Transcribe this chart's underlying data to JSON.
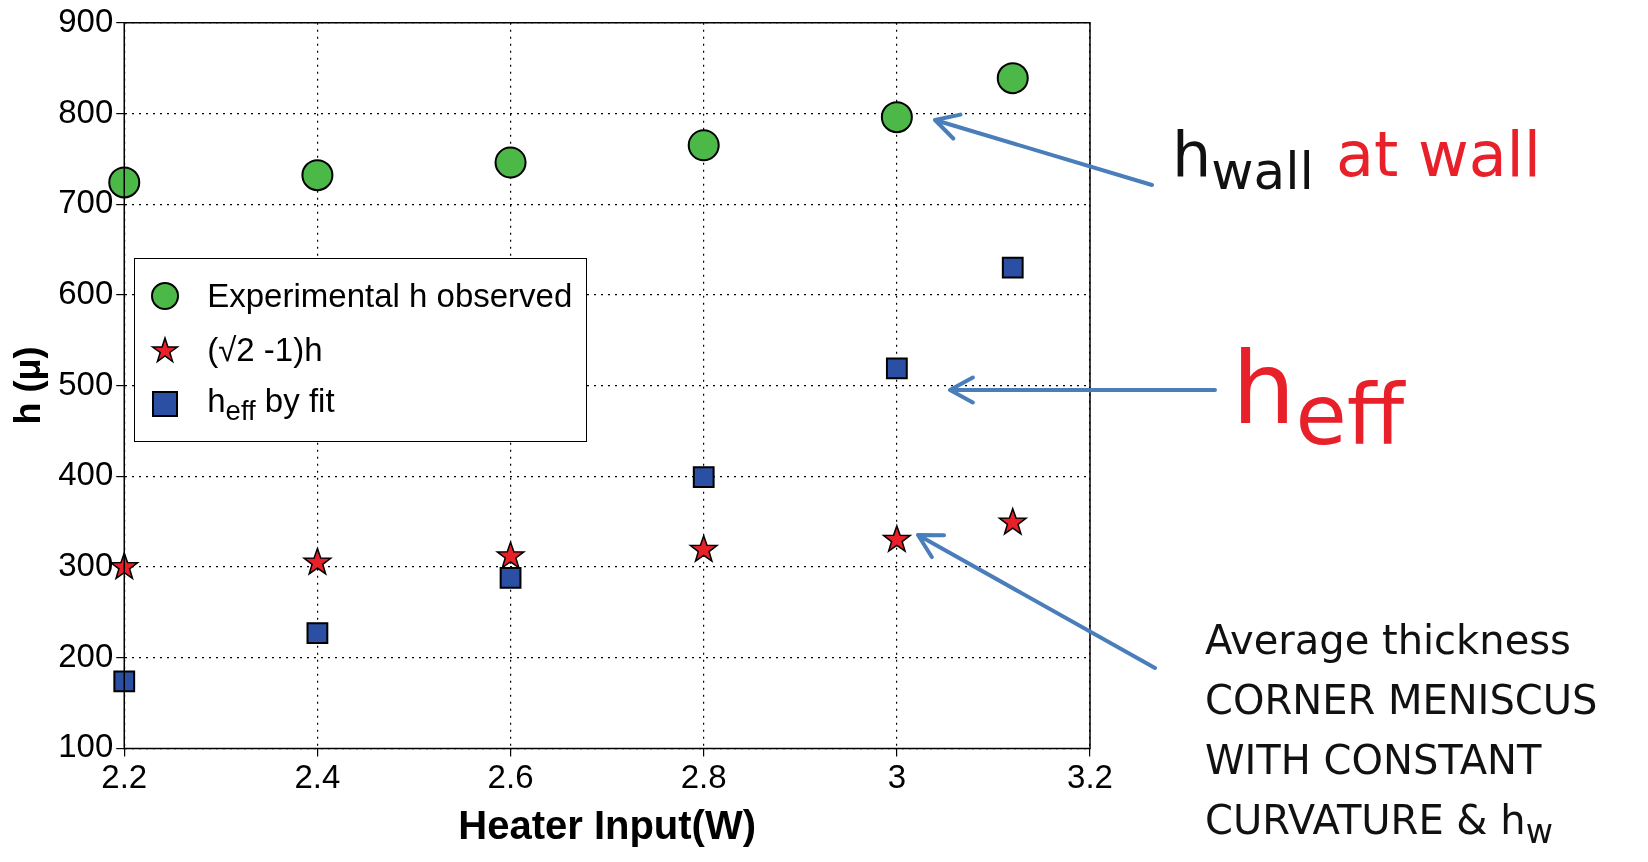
{
  "chart_data": {
    "type": "scatter",
    "xlabel": "Heater Input(W)",
    "ylabel": "h (μ)",
    "x": [
      2.2,
      2.4,
      2.6,
      2.8,
      3.0,
      3.12
    ],
    "series": [
      {
        "name": "Experimental h observed",
        "color": "#4cb848",
        "marker": "circle",
        "values": [
          724,
          732,
          746,
          765,
          796,
          839
        ]
      },
      {
        "name": "(√2 -1)h",
        "color": "#e8202a",
        "marker": "star",
        "values": [
          301,
          306,
          313,
          320,
          331,
          350
        ]
      },
      {
        "name": "h$_{eff}$ by fit",
        "color": "#2a4fa3",
        "marker": "square",
        "values": [
          174,
          227,
          288,
          399,
          519,
          630
        ]
      }
    ],
    "xlim": [
      2.2,
      3.2
    ],
    "xticks": [
      2.2,
      2.4,
      2.6,
      2.8,
      3,
      3.2
    ],
    "ylim": [
      100,
      900
    ],
    "yticks": [
      100,
      200,
      300,
      400,
      500,
      600,
      700,
      800,
      900
    ],
    "grid": true,
    "legend": "left",
    "annotations": [
      "h$_{wall}$",
      "at wall",
      "h$_{eff}$",
      "Average thickness\nCORNER MENISCUS\nWITH  CONSTANT\nCURVATURE  &  h$_{w}$"
    ]
  }
}
